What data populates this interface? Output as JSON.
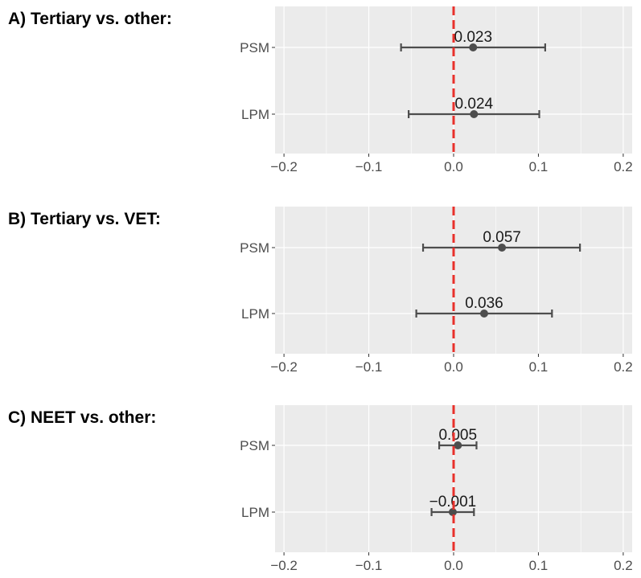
{
  "chart_data": [
    {
      "type": "scatter",
      "title": "A) Tertiary vs. other:",
      "categories": [
        "PSM",
        "LPM"
      ],
      "points": [
        {
          "label": "PSM",
          "estimate": 0.023,
          "lower": -0.062,
          "upper": 0.108,
          "text": "0.023"
        },
        {
          "label": "LPM",
          "estimate": 0.024,
          "lower": -0.053,
          "upper": 0.101,
          "text": "0.024"
        }
      ],
      "xlim": [
        -0.2,
        0.2
      ],
      "xticks": [
        "-0.2",
        "-0.1",
        "0.0",
        "0.1",
        "0.2"
      ],
      "reference_line": 0.0,
      "grid": true
    },
    {
      "type": "scatter",
      "title": "B) Tertiary vs. VET:",
      "categories": [
        "PSM",
        "LPM"
      ],
      "points": [
        {
          "label": "PSM",
          "estimate": 0.057,
          "lower": -0.036,
          "upper": 0.149,
          "text": "0.057"
        },
        {
          "label": "LPM",
          "estimate": 0.036,
          "lower": -0.044,
          "upper": 0.116,
          "text": "0.036"
        }
      ],
      "xlim": [
        -0.2,
        0.2
      ],
      "xticks": [
        "-0.2",
        "-0.1",
        "0.0",
        "0.1",
        "0.2"
      ],
      "reference_line": 0.0,
      "grid": true
    },
    {
      "type": "scatter",
      "title": "C) NEET vs. other:",
      "categories": [
        "PSM",
        "LPM"
      ],
      "points": [
        {
          "label": "PSM",
          "estimate": 0.005,
          "lower": -0.017,
          "upper": 0.027,
          "text": "0.005"
        },
        {
          "label": "LPM",
          "estimate": -0.001,
          "lower": -0.026,
          "upper": 0.024,
          "text": "-0.001"
        }
      ],
      "xlim": [
        -0.2,
        0.2
      ],
      "xticks": [
        "-0.2",
        "-0.1",
        "0.0",
        "0.1",
        "0.2"
      ],
      "reference_line": 0.0,
      "grid": true
    }
  ],
  "colors": {
    "panel_bg": "#ebebeb",
    "grid": "#ffffff",
    "point": "#4d4d4d",
    "errorbar": "#4d4d4d",
    "reference_line": "#e8302b",
    "tick_text": "#4d4d4d"
  }
}
